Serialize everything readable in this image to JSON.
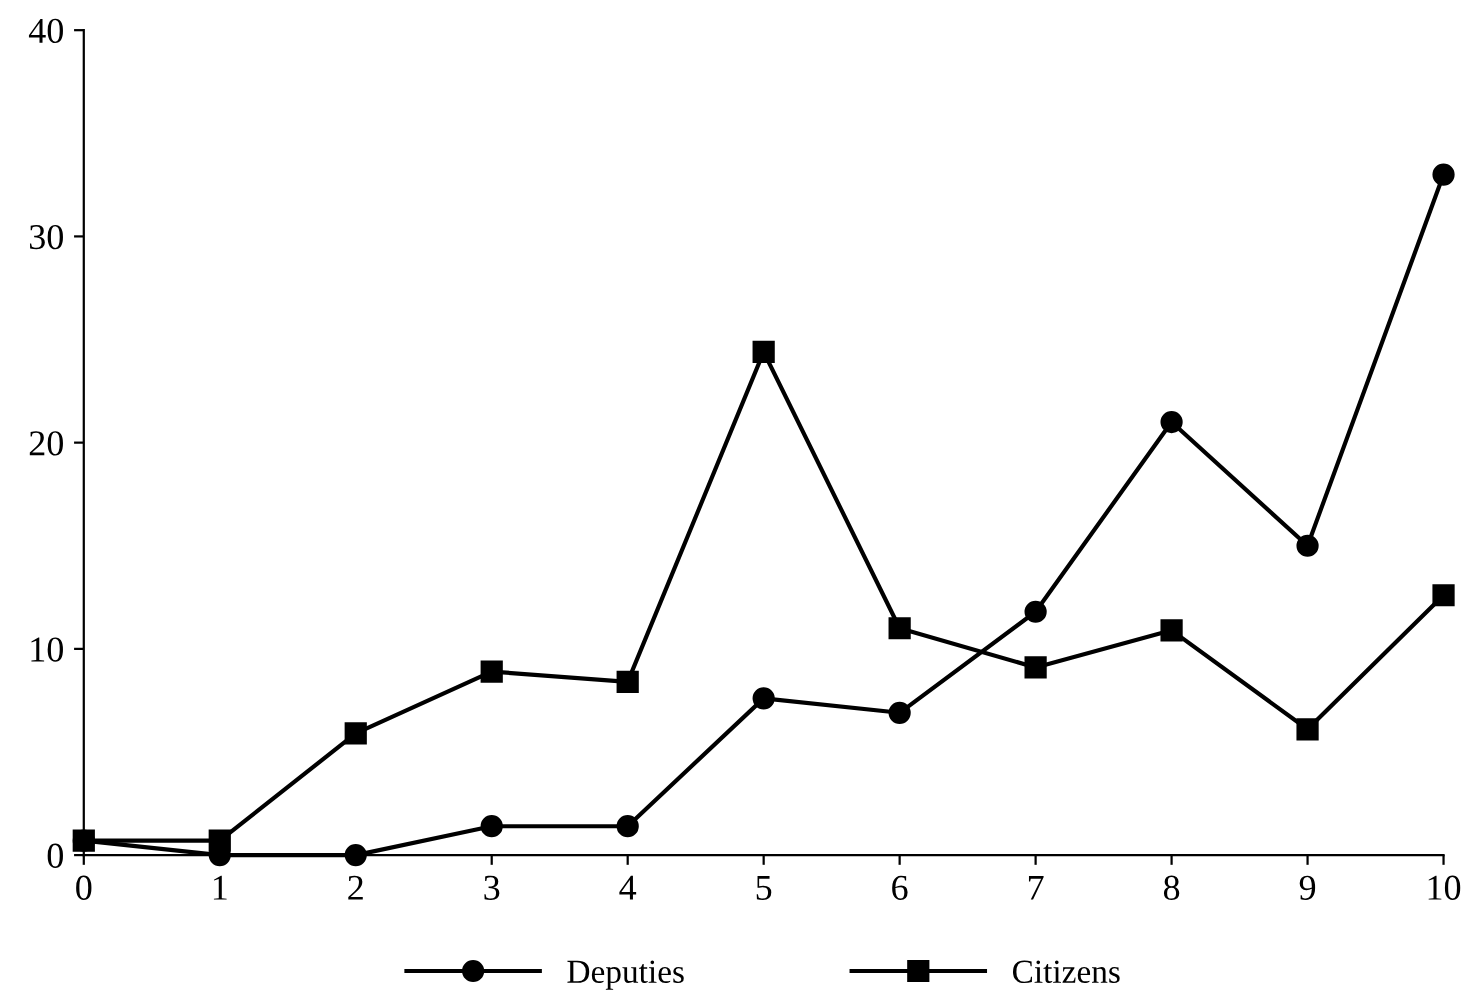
{
  "chart_data": {
    "type": "line",
    "x": [
      0,
      1,
      2,
      3,
      4,
      5,
      6,
      7,
      8,
      9,
      10
    ],
    "series": [
      {
        "name": "Deputies",
        "color": "#000000",
        "marker": "circle",
        "values": [
          0.7,
          0,
          0,
          1.4,
          1.4,
          7.6,
          6.9,
          11.8,
          21,
          15,
          33
        ]
      },
      {
        "name": "Citizens",
        "color": "#000000",
        "marker": "square",
        "values": [
          0.7,
          0.7,
          5.9,
          8.9,
          8.4,
          24.4,
          11,
          9.1,
          10.9,
          6.1,
          12.6
        ]
      }
    ],
    "xlim": [
      0,
      10
    ],
    "xticks": [
      0,
      1,
      2,
      3,
      4,
      5,
      6,
      7,
      8,
      9,
      10
    ],
    "ylim": [
      0,
      40
    ],
    "yticks": [
      0,
      10,
      20,
      30,
      40
    ],
    "grid": false,
    "legend": "bottom",
    "line_style": "solid"
  }
}
